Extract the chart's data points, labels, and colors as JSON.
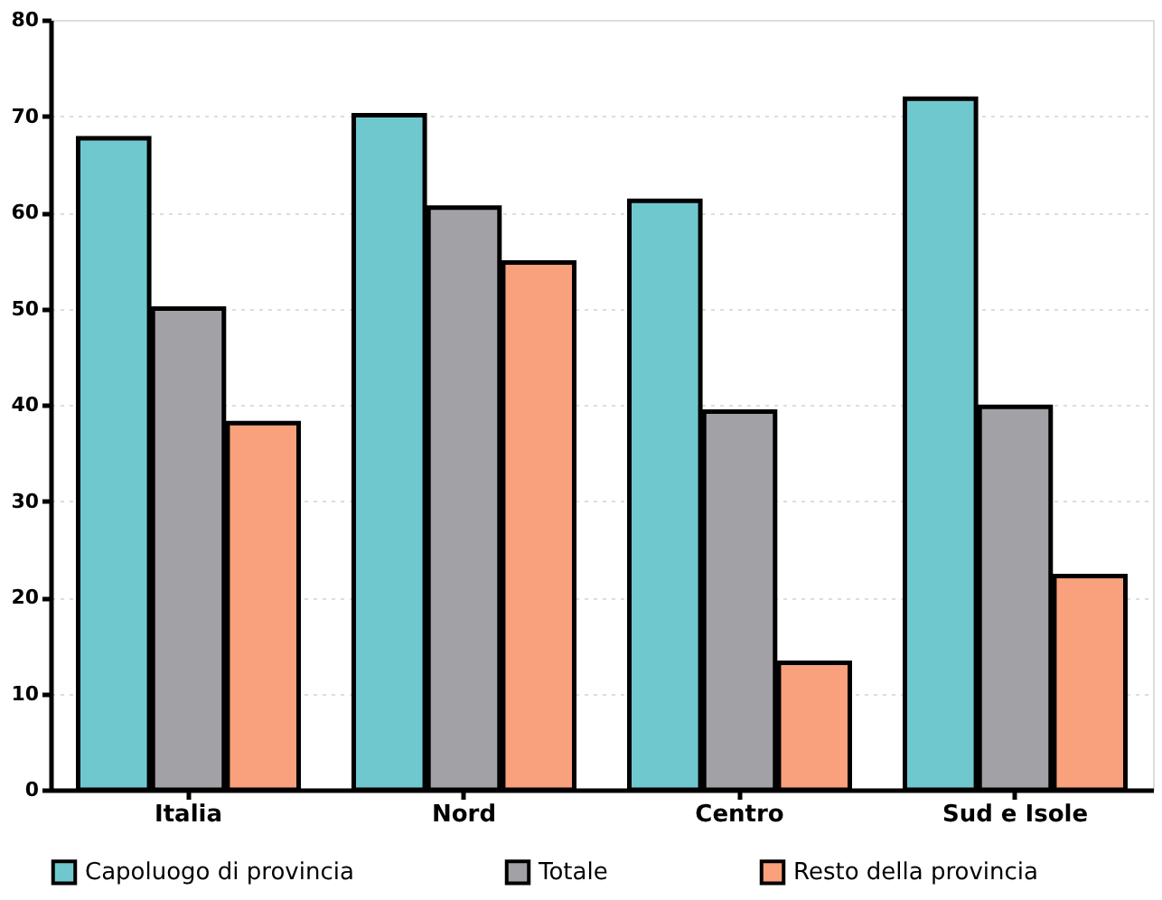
{
  "chart_data": {
    "type": "bar",
    "categories": [
      "Italia",
      "Nord",
      "Centro",
      "Sud e Isole"
    ],
    "series": [
      {
        "name": "Capoluogo di provincia",
        "color": "#70c8cf",
        "values": [
          67.7,
          70.1,
          61.2,
          71.8
        ]
      },
      {
        "name": "Totale",
        "color": "#a2a1a6",
        "values": [
          50.0,
          60.5,
          39.3,
          39.8
        ]
      },
      {
        "name": "Resto della provincia",
        "color": "#f9a07c",
        "values": [
          38.1,
          54.8,
          13.2,
          22.2
        ]
      }
    ],
    "ylim": [
      0,
      80
    ],
    "yticks": [
      0,
      10,
      20,
      30,
      40,
      50,
      60,
      70,
      80
    ],
    "grid": "y",
    "legend": "bottom"
  }
}
